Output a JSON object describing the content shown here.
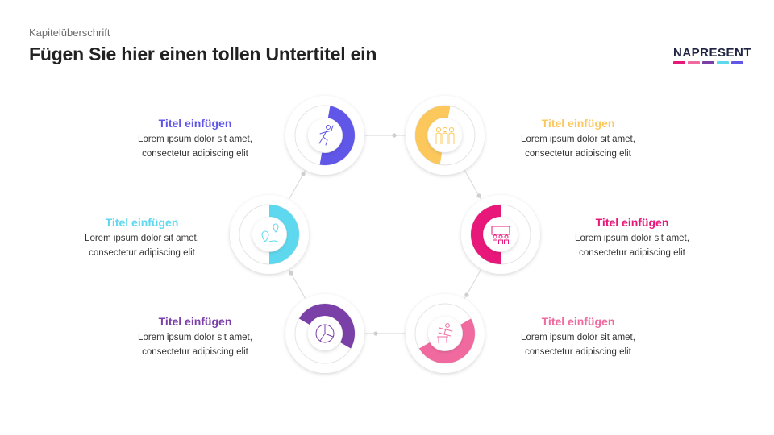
{
  "header": {
    "kicker": "Kapitelüberschrift",
    "title": "Fügen Sie hier einen tollen Untertitel ein"
  },
  "logo": {
    "text": "NAPRESENT",
    "bar_colors": [
      "#e8177a",
      "#f06aa0",
      "#7b3fa8",
      "#5ed8ef",
      "#6056e8"
    ]
  },
  "items": [
    {
      "title": "Titel einfügen",
      "line1": "Lorem ipsum dolor sit amet,",
      "line2": "consectetur adipiscing elit",
      "color": "#6056e8",
      "icon": "runner-icon",
      "fill": 0.5
    },
    {
      "title": "Titel einfügen",
      "line1": "Lorem ipsum dolor sit amet,",
      "line2": "consectetur adipiscing elit",
      "color": "#fcc85c",
      "icon": "team-icon",
      "fill": 0.5
    },
    {
      "title": "Titel einfügen",
      "line1": "Lorem ipsum dolor sit amet,",
      "line2": "consectetur adipiscing elit",
      "color": "#5ed8ef",
      "icon": "map-pin-icon",
      "fill": 0.5
    },
    {
      "title": "Titel einfügen",
      "line1": "Lorem ipsum dolor sit amet,",
      "line2": "consectetur adipiscing elit",
      "color": "#e8177a",
      "icon": "presentation-icon",
      "fill": 0.5
    },
    {
      "title": "Titel einfügen",
      "line1": "Lorem ipsum dolor sit amet,",
      "line2": "consectetur adipiscing elit",
      "color": "#7b3fa8",
      "icon": "pie-chart-icon",
      "fill": 0.5
    },
    {
      "title": "Titel einfügen",
      "line1": "Lorem ipsum dolor sit amet,",
      "line2": "consectetur adipiscing elit",
      "color": "#f06aa0",
      "icon": "hurdle-icon",
      "fill": 0.5
    }
  ]
}
